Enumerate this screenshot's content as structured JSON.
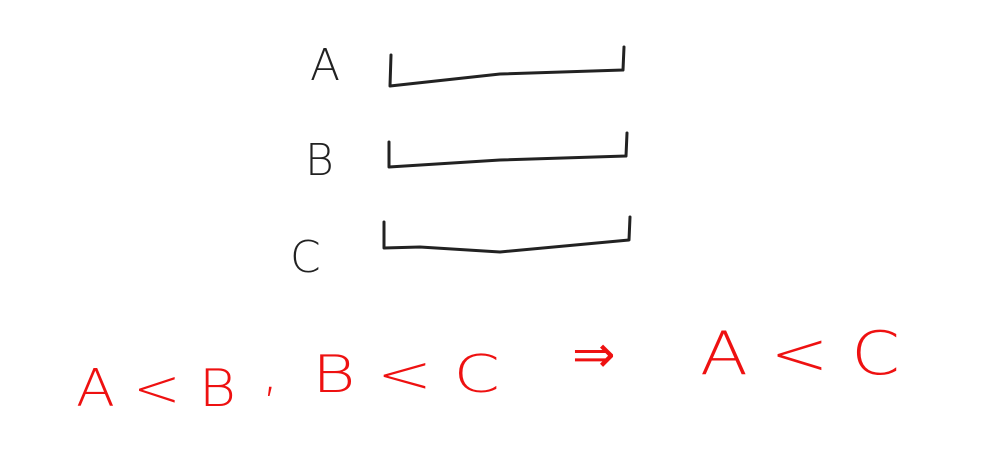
{
  "labels": [
    "A",
    "B",
    "C"
  ],
  "statement": {
    "parts": [
      "A < B",
      ",",
      "B < C",
      "⇒",
      "A < C"
    ]
  }
}
